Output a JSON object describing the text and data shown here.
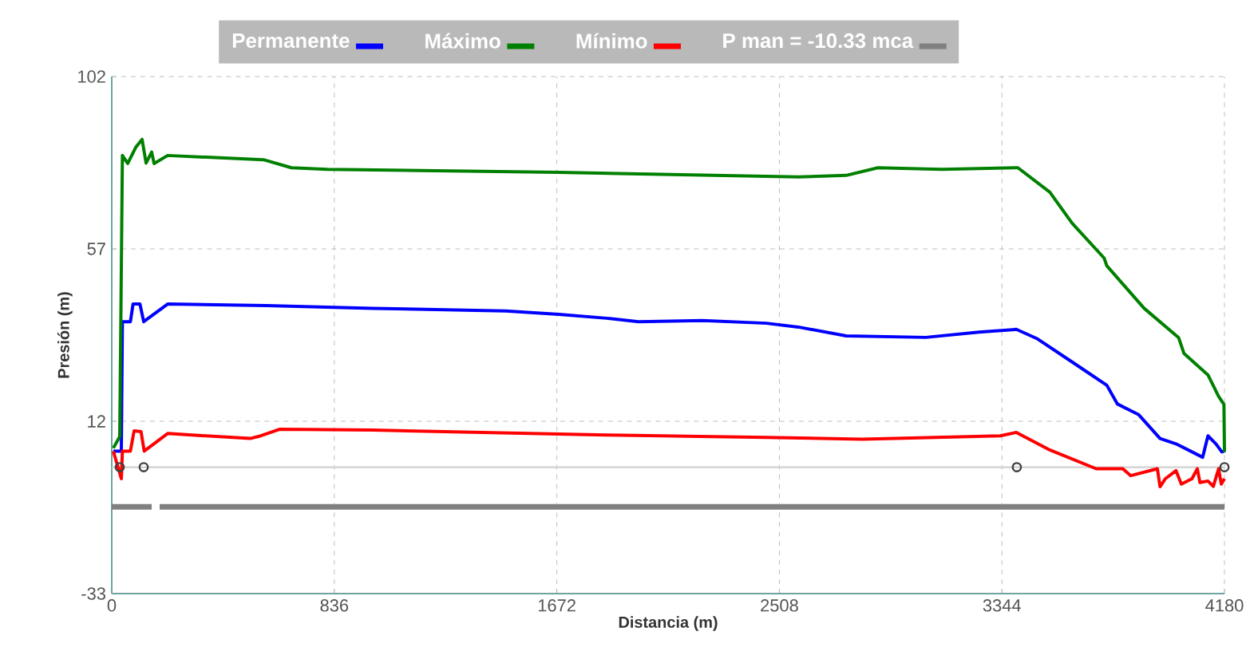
{
  "chart_data": {
    "type": "line",
    "xlabel": "Distancia (m)",
    "ylabel": "Presión (m)",
    "xlim": [
      0,
      4180
    ],
    "ylim": [
      -33,
      102
    ],
    "xticks": [
      0,
      836,
      1672,
      2508,
      3344,
      4180
    ],
    "yticks": [
      -33,
      12,
      57,
      102
    ],
    "grid": true,
    "legend": "top",
    "marker": "none",
    "line_style": "solid",
    "ref_lines": [
      {
        "axis": "y",
        "value": 0,
        "color": "#d0d0d0"
      }
    ],
    "series": [
      {
        "name": "Permanente",
        "color": "#0000ff",
        "x": [
          6,
          36,
          40,
          70,
          80,
          106,
          120,
          210,
          580,
          980,
          1480,
          1680,
          1859,
          1979,
          2219,
          2459,
          2579,
          2759,
          3058,
          3258,
          3398,
          3478,
          3618,
          3738,
          3778,
          3858,
          3938,
          3998,
          4098,
          4118,
          4148,
          4170,
          4180
        ],
        "values": [
          4.2,
          4.2,
          38,
          38,
          42.6,
          42.6,
          38,
          42.6,
          42.2,
          41.5,
          40.8,
          39.9,
          38.9,
          38.0,
          38.3,
          37.6,
          36.6,
          34.3,
          33.9,
          35.3,
          36.0,
          33.5,
          27.0,
          21.4,
          16.5,
          13.7,
          7.5,
          6.1,
          2.6,
          8.2,
          6.1,
          4.0,
          4.2
        ]
      },
      {
        "name": "Máximo",
        "color": "#008000",
        "x": [
          6,
          30,
          40,
          60,
          90,
          114,
          129,
          150,
          159,
          210,
          570,
          675,
          810,
          1679,
          2579,
          2759,
          2878,
          3118,
          3404,
          3524,
          3608,
          3728,
          3738,
          3878,
          4008,
          4028,
          4118,
          4158,
          4178,
          4180
        ],
        "values": [
          5,
          8,
          81.4,
          79.3,
          83.5,
          85.6,
          79.4,
          82.3,
          79.3,
          81.4,
          80.3,
          78.2,
          77.8,
          77.0,
          75.8,
          76.2,
          78.2,
          77.8,
          78.2,
          71.8,
          63.7,
          54.6,
          52.6,
          41.5,
          33.8,
          29.7,
          24.1,
          18.5,
          16.4,
          4.0
        ]
      },
      {
        "name": "Mínimo",
        "color": "#ff0000",
        "x": [
          6,
          36,
          40,
          70,
          84,
          110,
          122,
          210,
          520,
          560,
          630,
          980,
          1859,
          2459,
          2819,
          3338,
          3398,
          3518,
          3698,
          3798,
          3828,
          3928,
          3938,
          3958,
          3998,
          4018,
          4058,
          4078,
          4088,
          4118,
          4138,
          4158,
          4168,
          4180
        ],
        "values": [
          4.2,
          -3.0,
          4.2,
          4.2,
          9.5,
          9.3,
          4.2,
          8.8,
          7.5,
          8.2,
          9.9,
          9.7,
          8.4,
          7.8,
          7.3,
          8.2,
          9.1,
          4.7,
          -0.4,
          -0.4,
          -2.2,
          -0.4,
          -5.1,
          -3,
          -0.9,
          -4.4,
          -3,
          -0.4,
          -4,
          -3.6,
          -5,
          -0.4,
          -4.4,
          -3
        ]
      },
      {
        "name": "P man = -10.33 mca",
        "color": "#808080",
        "x": [
          0,
          150,
          165,
          180,
          4180
        ],
        "values": [
          -10.33,
          -10.33,
          null,
          -10.33,
          -10.33
        ]
      },
      {
        "type": "scatter",
        "marker": "circle",
        "color": "#404040",
        "x": [
          30,
          120,
          3400,
          4180
        ],
        "values": [
          0,
          0,
          0,
          0
        ]
      }
    ]
  }
}
